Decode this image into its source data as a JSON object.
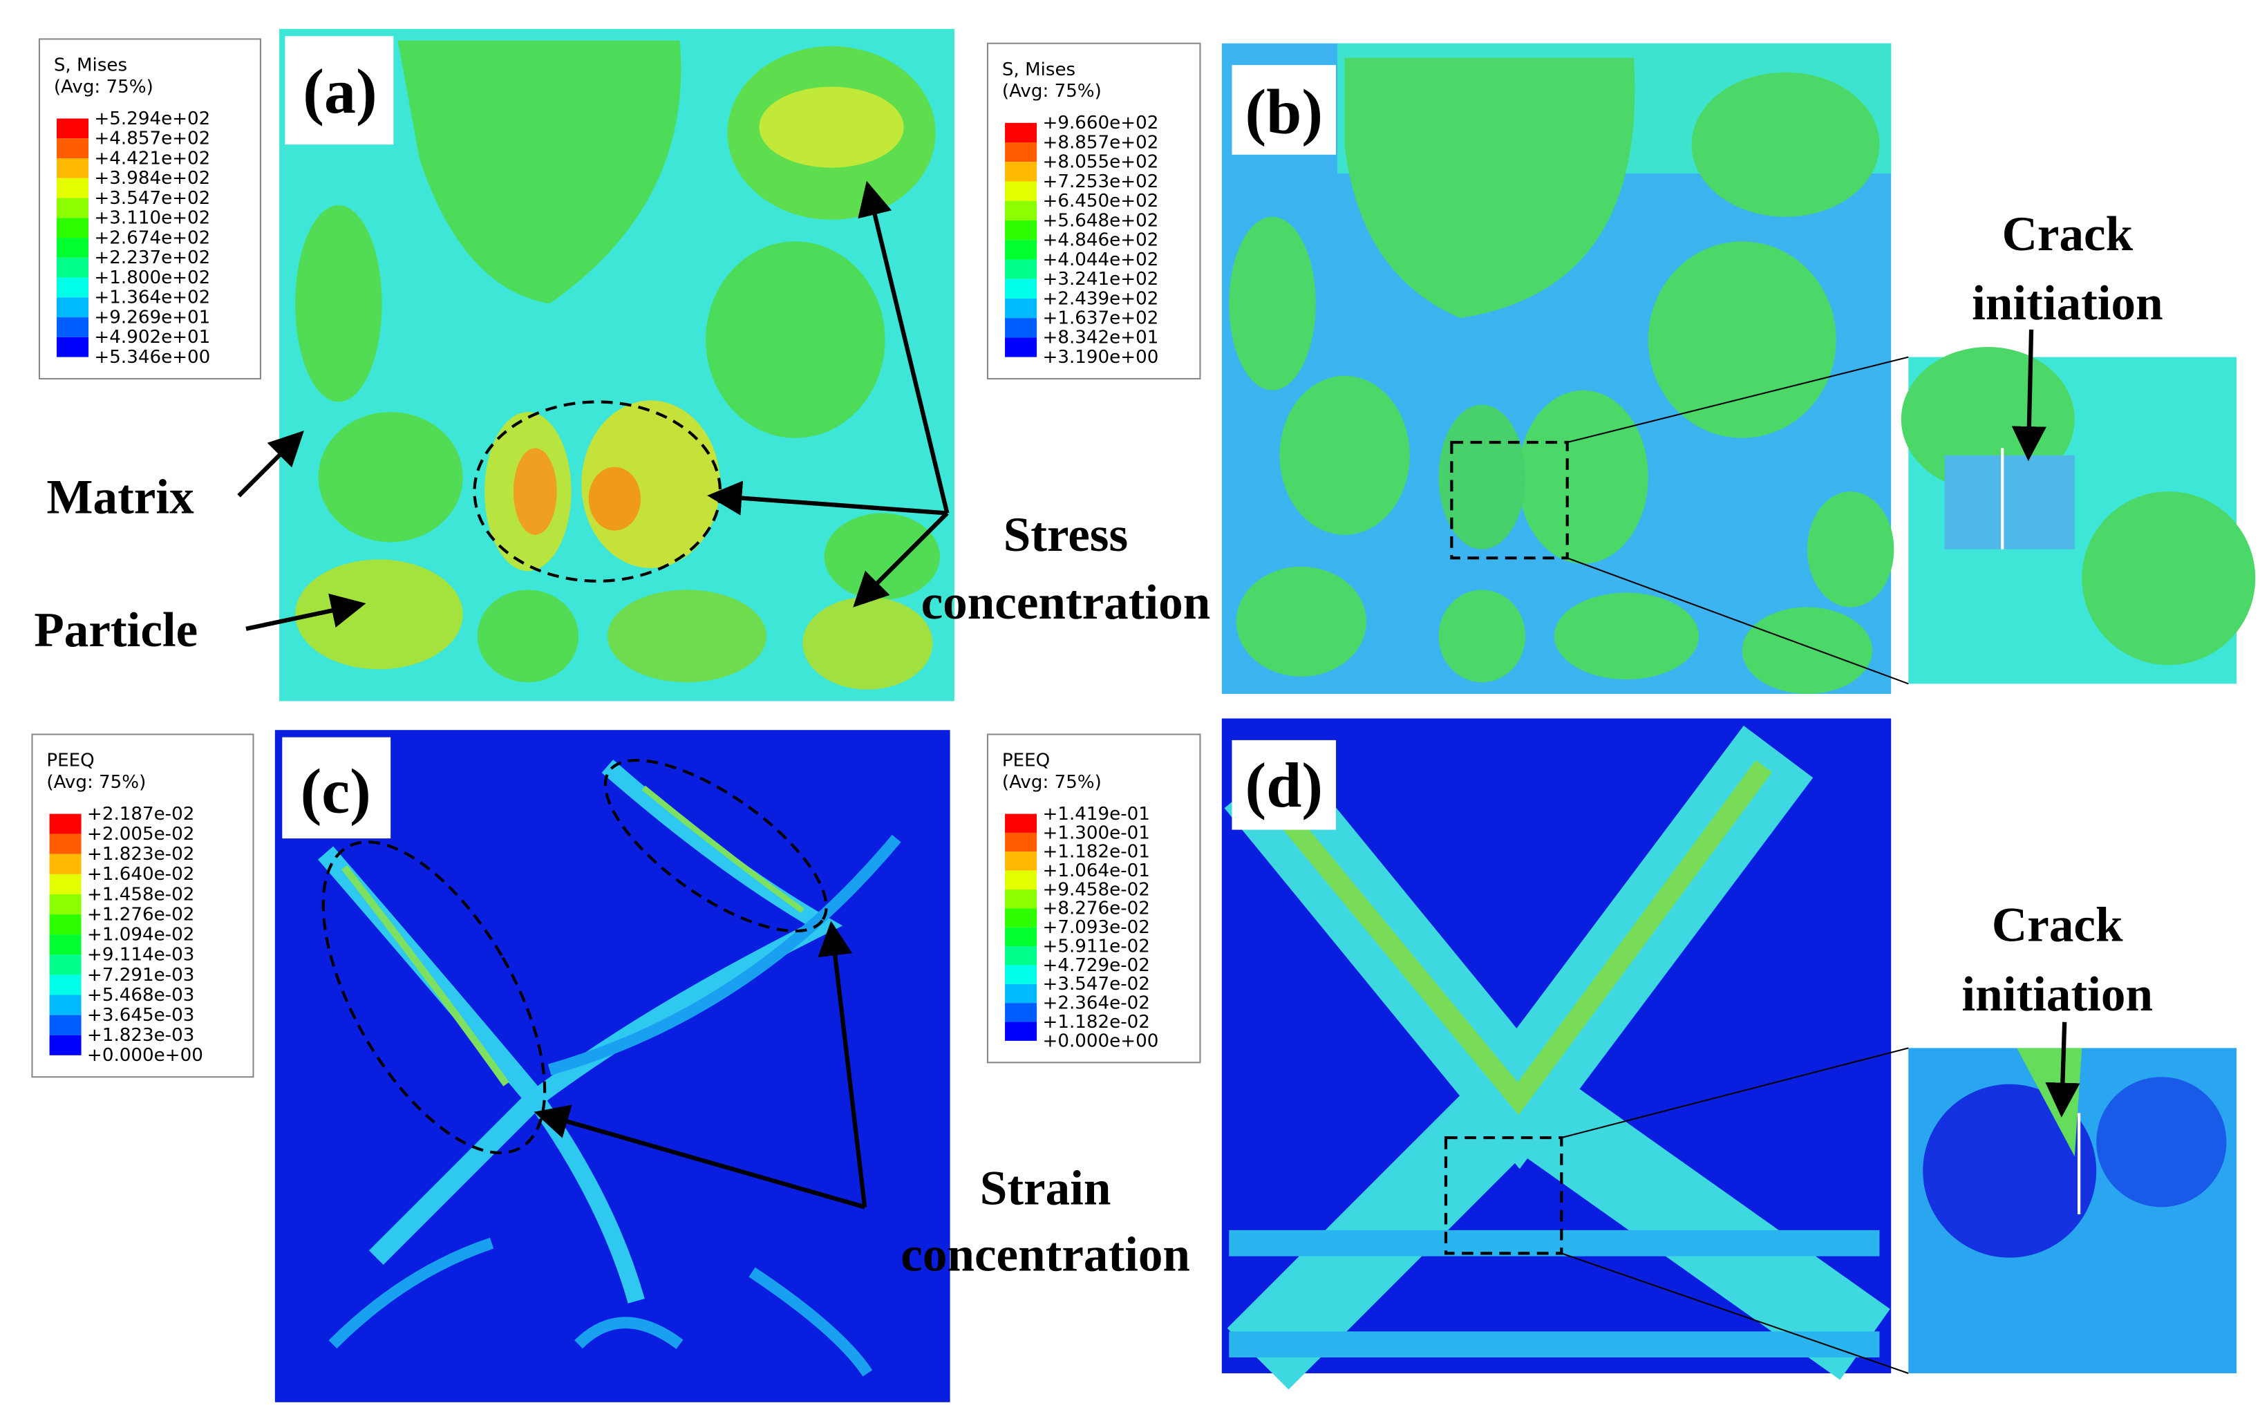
{
  "panels": [
    {
      "label": "(a)",
      "legend": {
        "title": "S, Mises",
        "subtitle": "(Avg: 75%)",
        "values": [
          "+5.294e+02",
          "+4.857e+02",
          "+4.421e+02",
          "+3.984e+02",
          "+3.547e+02",
          "+3.110e+02",
          "+2.674e+02",
          "+2.237e+02",
          "+1.800e+02",
          "+1.364e+02",
          "+9.269e+01",
          "+4.902e+01",
          "+5.346e+00"
        ]
      }
    },
    {
      "label": "(b)",
      "legend": {
        "title": "S, Mises",
        "subtitle": "(Avg: 75%)",
        "values": [
          "+9.660e+02",
          "+8.857e+02",
          "+8.055e+02",
          "+7.253e+02",
          "+6.450e+02",
          "+5.648e+02",
          "+4.846e+02",
          "+4.044e+02",
          "+3.241e+02",
          "+2.439e+02",
          "+1.637e+02",
          "+8.342e+01",
          "+3.190e+00"
        ]
      }
    },
    {
      "label": "(c)",
      "legend": {
        "title": "PEEQ",
        "subtitle": "(Avg: 75%)",
        "values": [
          "+2.187e-02",
          "+2.005e-02",
          "+1.823e-02",
          "+1.640e-02",
          "+1.458e-02",
          "+1.276e-02",
          "+1.094e-02",
          "+9.114e-03",
          "+7.291e-03",
          "+5.468e-03",
          "+3.645e-03",
          "+1.823e-03",
          "+0.000e+00"
        ]
      }
    },
    {
      "label": "(d)",
      "legend": {
        "title": "PEEQ",
        "subtitle": "(Avg: 75%)",
        "values": [
          "+1.419e-01",
          "+1.300e-01",
          "+1.182e-01",
          "+1.064e-01",
          "+9.458e-02",
          "+8.276e-02",
          "+7.093e-02",
          "+5.911e-02",
          "+4.729e-02",
          "+3.547e-02",
          "+2.364e-02",
          "+1.182e-02",
          "+0.000e+00"
        ]
      }
    }
  ],
  "annotations": {
    "matrix": "Matrix",
    "particle": "Particle",
    "stress": [
      "Stress",
      "concentration"
    ],
    "strain": [
      "Strain",
      "concentration"
    ],
    "crack_b": [
      "Crack",
      "initiation"
    ],
    "crack_d": [
      "Crack",
      "initiation"
    ]
  }
}
